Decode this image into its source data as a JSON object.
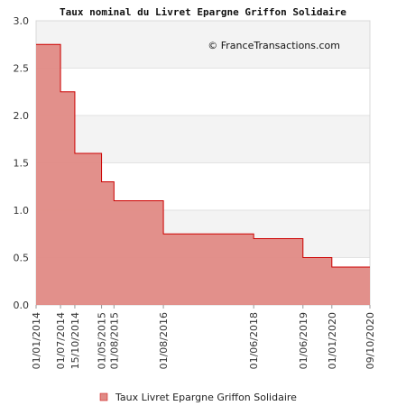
{
  "chart_data": {
    "type": "area",
    "title": "Taux nominal du Livret Epargne Griffon Solidaire",
    "watermark": "© FranceTransactions.com",
    "xlabel": "",
    "ylabel": "",
    "ylim": [
      0,
      3.0
    ],
    "yticks": [
      "0.0",
      "0.5",
      "1.0",
      "1.5",
      "2.0",
      "2.5",
      "3.0"
    ],
    "ytick_values": [
      0,
      0.5,
      1.0,
      1.5,
      2.0,
      2.5,
      3.0
    ],
    "x_tick_labels": [
      "01/01/2014",
      "01/07/2014",
      "15/10/2014",
      "01/05/2015",
      "01/08/2015",
      "01/08/2016",
      "01/06/2018",
      "01/06/2019",
      "01/01/2020",
      "09/10/2020"
    ],
    "x_tick_dates": [
      "2014-01-01",
      "2014-07-01",
      "2014-10-15",
      "2015-05-01",
      "2015-08-01",
      "2016-08-01",
      "2018-06-01",
      "2019-06-01",
      "2020-01-01",
      "2020-10-09"
    ],
    "grid": "horizontal",
    "legend_position": "bottom",
    "series": [
      {
        "name": "Taux Livret Epargne Griffon Solidaire",
        "color": "#e08a85",
        "line_color": "#cc0000",
        "step": true,
        "points": [
          {
            "date": "2014-01-01",
            "value": 2.75
          },
          {
            "date": "2014-07-01",
            "value": 2.25
          },
          {
            "date": "2014-10-15",
            "value": 1.6
          },
          {
            "date": "2015-05-01",
            "value": 1.3
          },
          {
            "date": "2015-08-01",
            "value": 1.1
          },
          {
            "date": "2016-08-01",
            "value": 0.75
          },
          {
            "date": "2018-06-01",
            "value": 0.7
          },
          {
            "date": "2019-06-01",
            "value": 0.5
          },
          {
            "date": "2020-01-01",
            "value": 0.4
          }
        ],
        "end_date": "2020-10-09"
      }
    ]
  }
}
